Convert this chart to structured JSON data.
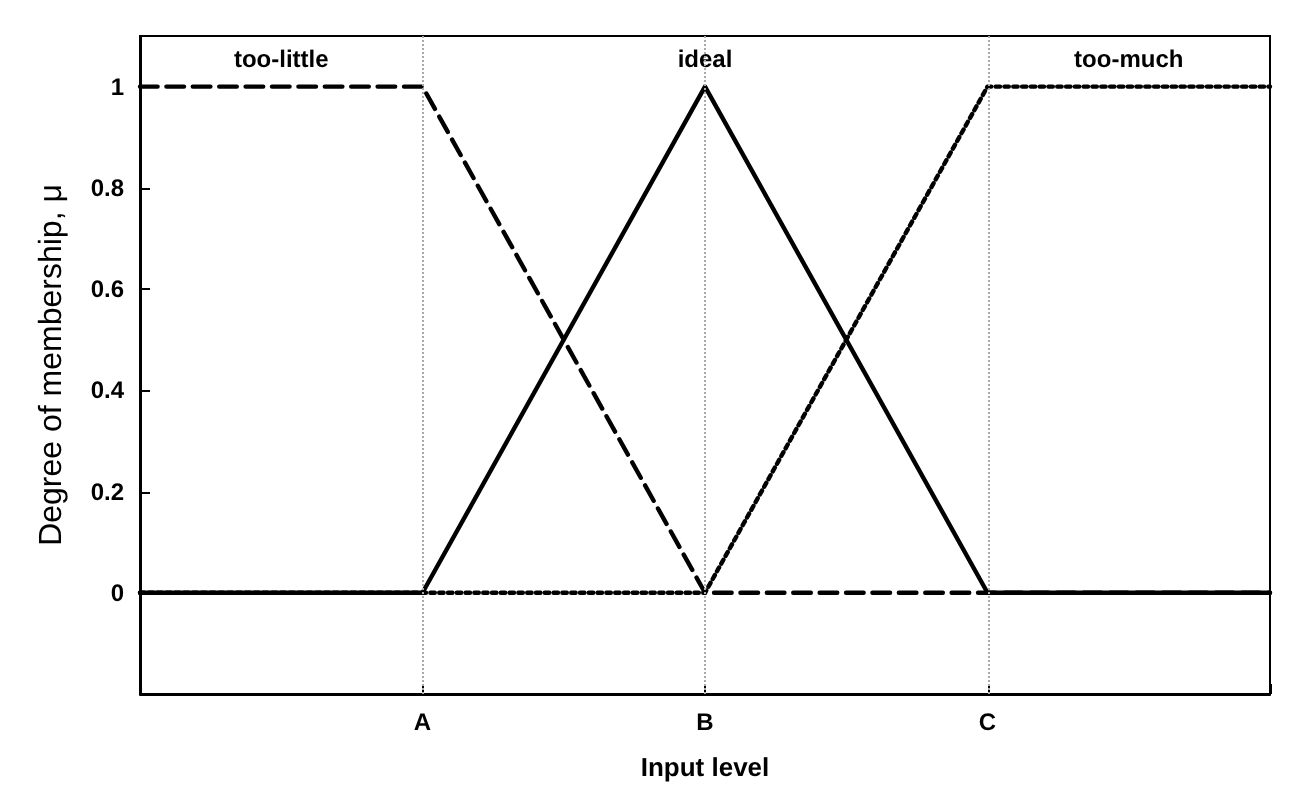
{
  "chart_data": {
    "type": "line",
    "xlabel": "Input level",
    "ylabel": "Degree of membership, μ",
    "categories": [
      null,
      "A",
      "B",
      "C",
      null
    ],
    "ylim": [
      -0.2,
      1.1
    ],
    "yticks": [
      0,
      0.2,
      0.4,
      0.6,
      0.8,
      1
    ],
    "grid": false,
    "legend": false,
    "marker": "none",
    "ref_lines": [
      {
        "axis": "x",
        "value": "A",
        "color": "#aaaaaa",
        "line_style": "dotted"
      },
      {
        "axis": "x",
        "value": "B",
        "color": "#aaaaaa",
        "line_style": "dotted"
      },
      {
        "axis": "x",
        "value": "C",
        "color": "#aaaaaa",
        "line_style": "dotted"
      }
    ],
    "series": [
      {
        "name": "too-little",
        "color": "#000000",
        "line_style": "dashed",
        "values": [
          1,
          1,
          0,
          0,
          0
        ]
      },
      {
        "name": "ideal",
        "color": "#000000",
        "line_style": "solid",
        "values": [
          0,
          0,
          1,
          0,
          0
        ]
      },
      {
        "name": "too-much",
        "color": "#000000",
        "line_style": "dotted",
        "values": [
          0,
          0,
          0,
          1,
          1
        ]
      }
    ]
  }
}
